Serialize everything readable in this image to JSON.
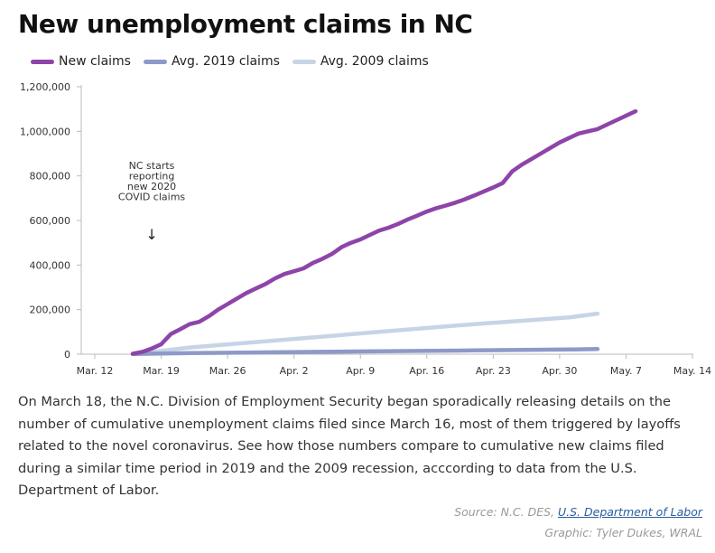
{
  "header": {
    "title": "New unemployment claims in NC"
  },
  "chart_data": {
    "type": "line",
    "title": "New unemployment claims in NC",
    "xlabel": "",
    "ylabel": "",
    "x_ticks": [
      "Mar. 12",
      "Mar. 19",
      "Mar. 26",
      "Apr. 2",
      "Apr. 9",
      "Apr. 16",
      "Apr. 23",
      "Apr. 30",
      "May. 7",
      "May. 14"
    ],
    "y_ticks": [
      "0",
      "200,000",
      "400,000",
      "600,000",
      "800,000",
      "1,000,000",
      "1,200,000"
    ],
    "xlim": [
      0,
      63
    ],
    "ylim": [
      0,
      1200000
    ],
    "legend_position": "top-left",
    "grid": false,
    "series": [
      {
        "name": "New claims",
        "color": "#8e44a8",
        "x": [
          4,
          5,
          6,
          7,
          8,
          9,
          10,
          11,
          12,
          13,
          14,
          15,
          16,
          17,
          18,
          19,
          20,
          21,
          22,
          23,
          24,
          25,
          26,
          27,
          28,
          29,
          30,
          31,
          32,
          33,
          34,
          35,
          36,
          37,
          38,
          39,
          40,
          41,
          42,
          43,
          44,
          45,
          46,
          47,
          48,
          49,
          50,
          51,
          52,
          53,
          54,
          55,
          56,
          57
        ],
        "y": [
          2000,
          10000,
          25000,
          45000,
          90000,
          112000,
          135000,
          145000,
          170000,
          200000,
          225000,
          250000,
          275000,
          295000,
          315000,
          340000,
          360000,
          372000,
          385000,
          410000,
          428000,
          450000,
          480000,
          500000,
          515000,
          535000,
          555000,
          568000,
          585000,
          605000,
          622000,
          640000,
          655000,
          667000,
          680000,
          695000,
          712000,
          730000,
          748000,
          768000,
          820000,
          850000,
          875000,
          900000,
          925000,
          950000,
          970000,
          990000,
          1000000,
          1010000,
          1030000,
          1050000,
          1070000,
          1090000
        ]
      },
      {
        "name": "Avg. 2019 claims",
        "color": "#8d9ac9",
        "x": [
          4,
          10,
          20,
          30,
          40,
          50,
          53
        ],
        "y": [
          1000,
          5000,
          9000,
          13000,
          17000,
          21000,
          23000
        ]
      },
      {
        "name": "Avg. 2009 claims",
        "color": "#c6d4e6",
        "x": [
          4,
          10,
          20,
          30,
          40,
          50,
          53
        ],
        "y": [
          1000,
          30000,
          65000,
          100000,
          135000,
          165000,
          182000
        ]
      }
    ],
    "annotations": [
      {
        "text": [
          "NC starts",
          "reporting",
          "new 2020",
          "COVID claims"
        ],
        "x": 6,
        "arrow": "↓"
      }
    ]
  },
  "description": "On March 18, the N.C. Division of Employment Security began sporadically releasing details on the number of cumulative unemployment claims filed since March 16, most of them triggered by layoffs related to the novel coronavirus. See how those numbers compare to cumulative new claims filed during a similar time period in 2019 and the 2009 recession, acccording to data from the U.S. Department of Labor.",
  "footer": {
    "source_prefix": "Source: N.C. DES, ",
    "source_link": "U.S. Department of Labor",
    "credit": "Graphic: Tyler Dukes, WRAL"
  }
}
